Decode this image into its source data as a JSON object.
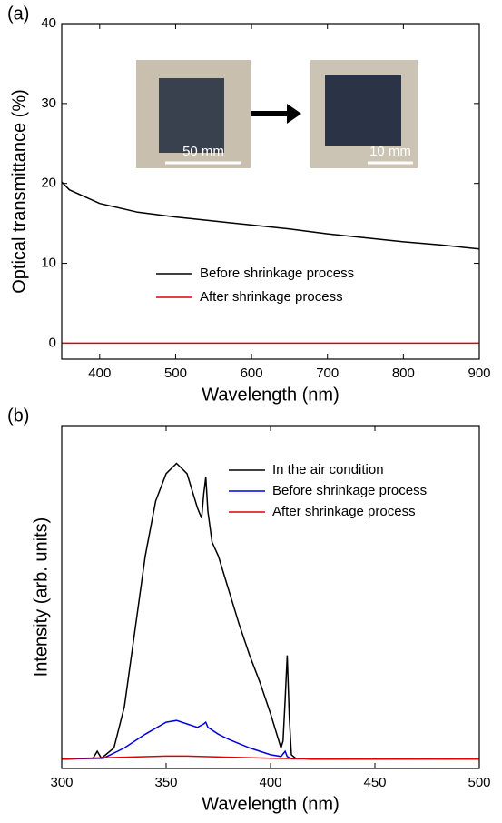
{
  "chart_data": [
    {
      "type": "line",
      "label": "(a)",
      "x_label": "Wavelength (nm)",
      "y_label": "Optical transmittance (%)",
      "xlim": [
        350,
        900
      ],
      "xticks": [
        400,
        500,
        600,
        700,
        800,
        900
      ],
      "ylim": [
        -2,
        40
      ],
      "yticks": [
        0,
        10,
        20,
        30,
        40
      ],
      "annotations": [
        "50 mm",
        "10 mm"
      ],
      "series": [
        {
          "name": "Before shrinkage process",
          "color": "#000000",
          "x": [
            350,
            360,
            400,
            450,
            500,
            550,
            600,
            650,
            700,
            750,
            800,
            850,
            900
          ],
          "values": [
            20.2,
            19.2,
            17.5,
            16.4,
            15.8,
            15.3,
            14.8,
            14.3,
            13.7,
            13.2,
            12.7,
            12.3,
            11.8
          ]
        },
        {
          "name": "After shrinkage process",
          "color": "#e00000",
          "x": [
            350,
            900
          ],
          "values": [
            0,
            0
          ]
        }
      ]
    },
    {
      "type": "line",
      "label": "(b)",
      "x_label": "Wavelength (nm)",
      "y_label": "Intensity (arb. units)",
      "xlim": [
        300,
        500
      ],
      "xticks": [
        300,
        350,
        400,
        450,
        500
      ],
      "ylim": [
        0,
        100
      ],
      "series": [
        {
          "name": "In the air condition",
          "color": "#000000",
          "x": [
            300,
            315,
            317,
            319,
            325,
            330,
            335,
            340,
            345,
            350,
            355,
            360,
            365,
            367,
            368,
            369,
            370,
            372,
            375,
            380,
            385,
            390,
            395,
            400,
            403,
            405,
            406,
            407,
            408,
            409,
            410,
            412,
            420,
            450,
            500
          ],
          "values": [
            2.7,
            3,
            5,
            3,
            6,
            18,
            40,
            62,
            78,
            86,
            89,
            86,
            76,
            73,
            80,
            85,
            75,
            66,
            62,
            52,
            42,
            33,
            25,
            16,
            10,
            6,
            8,
            20,
            33,
            15,
            4,
            3,
            2.7,
            2.7,
            2.7
          ]
        },
        {
          "name": "Before shrinkage process",
          "color": "#0000e0",
          "x": [
            300,
            320,
            330,
            340,
            350,
            355,
            360,
            365,
            368,
            369,
            370,
            375,
            380,
            390,
            400,
            405,
            407,
            408,
            410,
            500
          ],
          "values": [
            2.7,
            3,
            6,
            10,
            13.5,
            14,
            13,
            12,
            13,
            13.5,
            12,
            10,
            8.5,
            6,
            4,
            3.5,
            5,
            3.5,
            2.8,
            2.7
          ]
        },
        {
          "name": "After shrinkage process",
          "color": "#e00000",
          "x": [
            300,
            330,
            350,
            360,
            380,
            400,
            420,
            500
          ],
          "values": [
            2.8,
            3.3,
            3.6,
            3.6,
            3.3,
            3,
            2.8,
            2.7
          ]
        }
      ]
    }
  ]
}
